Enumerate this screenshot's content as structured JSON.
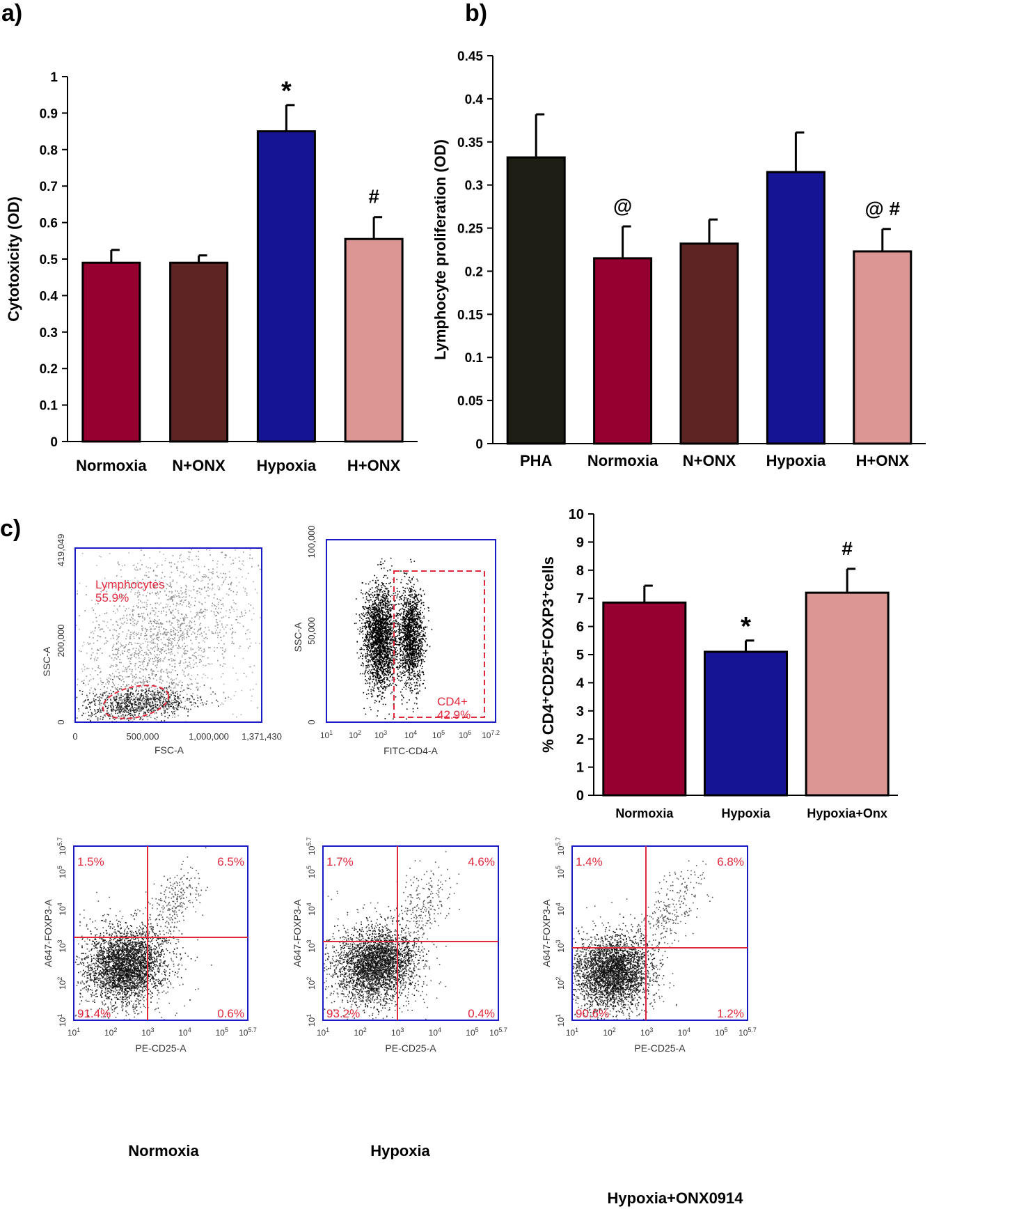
{
  "panel_labels": {
    "a": "a)",
    "b": "b)",
    "c": "c)"
  },
  "colors": {
    "normoxia": "#960030",
    "n_onx": "#5e2424",
    "hypoxia": "#141495",
    "h_onx": "#dc9694",
    "pha": "#1e1e14",
    "flow_axis": "#1919c8",
    "flow_gate": "#e0283c"
  },
  "chart_data": [
    {
      "id": "a",
      "type": "bar",
      "title": "",
      "xlabel": "",
      "ylabel": "Cytotoxicity (OD)",
      "ylim": [
        0,
        1
      ],
      "yticks": [
        "0",
        "0.1",
        "0.2",
        "0.3",
        "0.4",
        "0.5",
        "0.6",
        "0.7",
        "0.8",
        "0.9",
        "1"
      ],
      "categories": [
        "Normoxia",
        "N+ONX",
        "Hypoxia",
        "H+ONX"
      ],
      "values": [
        0.49,
        0.49,
        0.85,
        0.555
      ],
      "errors": [
        0.035,
        0.02,
        0.072,
        0.06
      ],
      "annotations": [
        "",
        "",
        "*",
        "#"
      ],
      "colors": [
        "#960030",
        "#5e2424",
        "#141495",
        "#dc9694"
      ]
    },
    {
      "id": "b",
      "type": "bar",
      "title": "",
      "xlabel": "",
      "ylabel": "Lymphocyte proliferation (OD)",
      "ylim": [
        0,
        0.45
      ],
      "yticks": [
        "0",
        "0.05",
        "0.1",
        "0.15",
        "0.2",
        "0.25",
        "0.3",
        "0.35",
        "0.4",
        "0.45"
      ],
      "categories": [
        "PHA",
        "Normoxia",
        "N+ONX",
        "Hypoxia",
        "H+ONX"
      ],
      "values": [
        0.332,
        0.215,
        0.232,
        0.315,
        0.223
      ],
      "errors": [
        0.05,
        0.037,
        0.028,
        0.046,
        0.026
      ],
      "annotations": [
        "",
        "@",
        "",
        "",
        "@ #"
      ],
      "colors": [
        "#1e1e14",
        "#960030",
        "#5e2424",
        "#141495",
        "#dc9694"
      ]
    },
    {
      "id": "c-bar",
      "type": "bar",
      "title": "",
      "xlabel": "",
      "ylabel": "% CD4⁺CD25⁺FOXP3⁺cells",
      "ylim": [
        0,
        10
      ],
      "yticks": [
        "0",
        "1",
        "2",
        "3",
        "4",
        "5",
        "6",
        "7",
        "8",
        "9",
        "10"
      ],
      "categories": [
        "Normoxia",
        "Hypoxia",
        "Hypoxia+Onx"
      ],
      "values": [
        6.85,
        5.1,
        7.2
      ],
      "errors": [
        0.6,
        0.4,
        0.85
      ],
      "annotations": [
        "",
        "*",
        "#"
      ],
      "colors": [
        "#960030",
        "#141495",
        "#dc9694"
      ]
    },
    {
      "id": "c-gate-lymph",
      "type": "scatter",
      "xlabel": "FSC-A",
      "ylabel": "SSC-A",
      "xticks": [
        "0",
        "500,000",
        "1,000,000",
        "1,371,430"
      ],
      "yticks": [
        "0",
        "200,000",
        "419,049"
      ],
      "gate_label": "Lymphocytes",
      "gate_value": "55.9%"
    },
    {
      "id": "c-gate-cd4",
      "type": "scatter",
      "xlabel": "FITC-CD4-A",
      "ylabel": "SSC-A",
      "xticks": [
        "10^1",
        "10^2",
        "10^3",
        "10^4",
        "10^5",
        "10^6",
        "10^7.2"
      ],
      "yticks": [
        "0",
        "50,000",
        "100,000"
      ],
      "gate_label": "CD4+",
      "gate_value": "42.9%"
    },
    {
      "id": "c-quad-normoxia",
      "type": "scatter",
      "xlabel": "PE-CD25-A",
      "ylabel": "A647-FOXP3-A",
      "xticks": [
        "10^1",
        "10^2",
        "10^3",
        "10^4",
        "10^5",
        "10^5.7"
      ],
      "yticks": [
        "10^1",
        "10^2",
        "10^3",
        "10^4",
        "10^5",
        "10^5.7"
      ],
      "quadrants": {
        "ul": "1.5%",
        "ur": "6.5%",
        "ll": "91.4%",
        "lr": "0.6%"
      },
      "caption": "Normoxia"
    },
    {
      "id": "c-quad-hypoxia",
      "type": "scatter",
      "xlabel": "PE-CD25-A",
      "ylabel": "A647-FOXP3-A",
      "xticks": [
        "10^1",
        "10^2",
        "10^3",
        "10^4",
        "10^5",
        "10^5.7"
      ],
      "yticks": [
        "10^1",
        "10^2",
        "10^3",
        "10^4",
        "10^5",
        "10^5.7"
      ],
      "quadrants": {
        "ul": "1.7%",
        "ur": "4.6%",
        "ll": "93.2%",
        "lr": "0.4%"
      },
      "caption": "Hypoxia"
    },
    {
      "id": "c-quad-hyponx",
      "type": "scatter",
      "xlabel": "PE-CD25-A",
      "ylabel": "A647-FOXP3-A",
      "xticks": [
        "10^1",
        "10^2",
        "10^3",
        "10^4",
        "10^5",
        "10^5.7"
      ],
      "yticks": [
        "10^1",
        "10^2",
        "10^3",
        "10^4",
        "10^5",
        "10^5.7"
      ],
      "quadrants": {
        "ul": "1.4%",
        "ur": "6.8%",
        "ll": "90.6%",
        "lr": "1.2%"
      },
      "caption": "Hypoxia+ONX0914"
    }
  ]
}
